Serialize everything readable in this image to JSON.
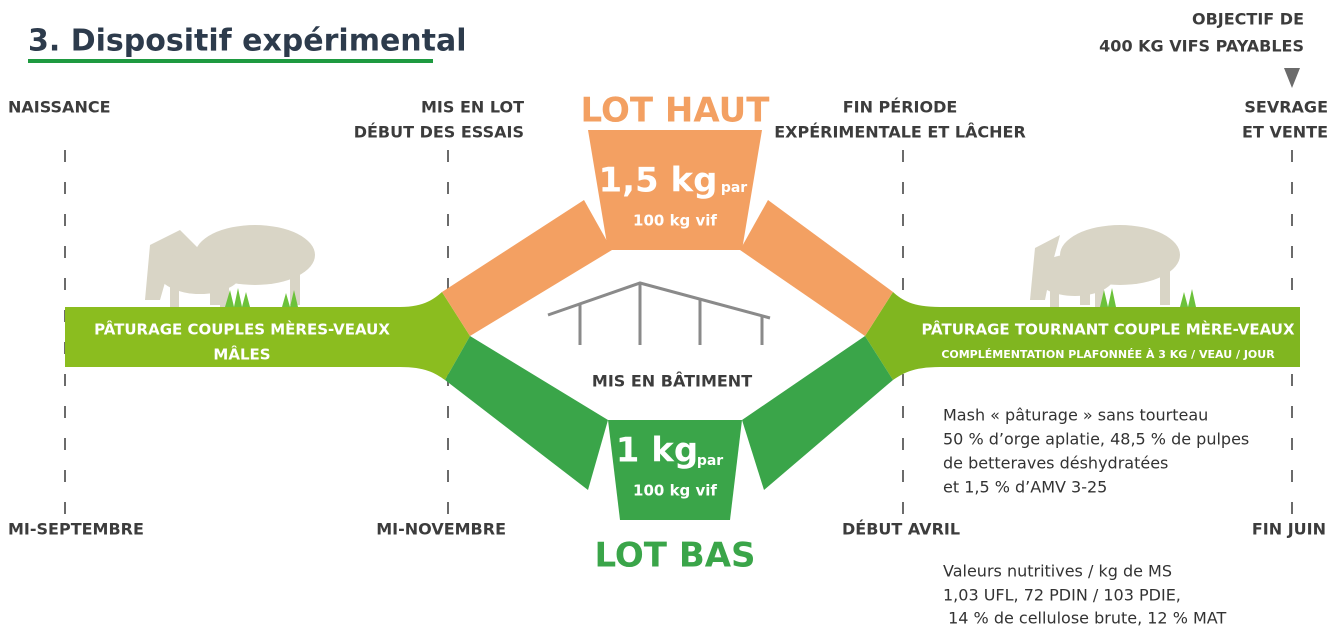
{
  "title": "3. Dispositif expérimental",
  "objective": [
    "OBJECTIF DE",
    "400 KG VIFS PAYABLES"
  ],
  "timeline": {
    "top": [
      [
        "NAISSANCE"
      ],
      [
        "MIS EN LOT",
        "DÉBUT DES ESSAIS"
      ],
      [
        "FIN PÉRIODE",
        "EXPÉRIMENTALE ET LÂCHER"
      ],
      [
        "SEVRAGE",
        "ET VENTE"
      ]
    ],
    "bottom": [
      "MI-SEPTEMBRE",
      "MI-NOVEMBRE",
      "DÉBUT AVRIL",
      "FIN JUIN"
    ]
  },
  "phases": {
    "left": [
      "PÂTURAGE COUPLES MÈRES-VEAUX",
      "MÂLES"
    ],
    "right": {
      "title": "PÂTURAGE TOURNANT COUPLE MÈRE-VEAUX",
      "subtitle": "COMPLÉMENTATION PLAFONNÉE À 3 KG / VEAU / JOUR"
    },
    "barn": "MIS EN BÂTIMENT"
  },
  "lot_haut": {
    "label": "LOT HAUT",
    "amount": "1,5 kg",
    "per": "par",
    "basis": "100 kg vif"
  },
  "lot_bas": {
    "label": "LOT BAS",
    "amount": "1 kg",
    "per": "par",
    "basis": "100 kg vif"
  },
  "mash": [
    "Mash « pâturage » sans tourteau",
    "50 % d’orge aplatie, 48,5 % de pulpes",
    "de betteraves déshydratées",
    "et 1,5 % d’AMV 3-25"
  ],
  "nutritive": [
    "Valeurs nutritives / kg de MS",
    "1,03 UFL, 72 PDIN / 103 PDIE,",
    " 14 % de cellulose brute, 12 % MAT"
  ]
}
